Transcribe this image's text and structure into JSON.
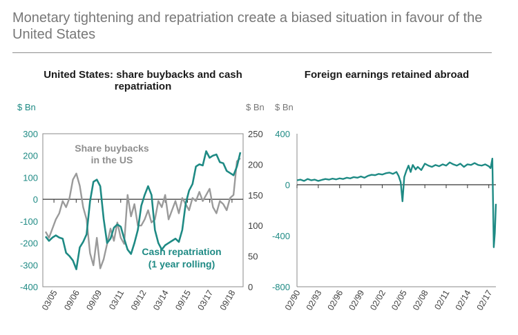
{
  "page": {
    "heading": "Monetary tightening and repatriation create a biased situation in favour of the United States"
  },
  "colors": {
    "teal": "#1e8a84",
    "grey": "#9a9a9a",
    "text_grey": "#777777",
    "axis_text": "#3d3d3d"
  },
  "chart_data": [
    {
      "type": "line",
      "title": "United States: share buybacks and cash repatriation",
      "ylabel_left": "$ Bn",
      "ylabel_right": "$ Bn",
      "ylim_left": [
        -400,
        300
      ],
      "ylim_right": [
        0,
        250
      ],
      "yticks_left": [
        "300",
        "200",
        "100",
        "0",
        "-100",
        "-200",
        "-300",
        "-400"
      ],
      "yticks_right": [
        "250",
        "200",
        "150",
        "100",
        "50",
        "0"
      ],
      "x_ticks": [
        "03/05",
        "09/06",
        "09/09",
        "03/11",
        "09/12",
        "03/14",
        "09/15",
        "03/17",
        "09/18"
      ],
      "annotations": {
        "buybacks": [
          "Share buybacks",
          "in the US"
        ],
        "repatriation": [
          "Cash repatriation",
          "(1 year rolling)"
        ]
      },
      "series": [
        {
          "name": "Cash repatriation (1 year rolling)",
          "axis": "left",
          "values": [
            -170,
            -190,
            -175,
            -165,
            -175,
            -180,
            -245,
            -260,
            -280,
            -320,
            -220,
            -195,
            -160,
            -10,
            80,
            90,
            60,
            -90,
            -200,
            -180,
            -130,
            -115,
            -125,
            -180,
            -230,
            -250,
            -200,
            -140,
            -30,
            20,
            60,
            20,
            -140,
            -200,
            -230,
            -210,
            -200,
            -190,
            -180,
            -195,
            -140,
            -20,
            40,
            70,
            150,
            160,
            155,
            220,
            190,
            200,
            205,
            170,
            165,
            130,
            120,
            110,
            150,
            215
          ]
        },
        {
          "name": "Share buybacks in the US",
          "axis": "right",
          "values": [
            90,
            80,
            95,
            110,
            120,
            140,
            130,
            145,
            175,
            185,
            165,
            130,
            110,
            55,
            35,
            80,
            30,
            45,
            70,
            95,
            75,
            105,
            80,
            70,
            150,
            115,
            135,
            100,
            100,
            110,
            125,
            105,
            110,
            140,
            130,
            150,
            110,
            125,
            140,
            120,
            145,
            135,
            125,
            145,
            140,
            155,
            140,
            150,
            160,
            130,
            120,
            140,
            135,
            125,
            145,
            150,
            205,
            210
          ]
        }
      ]
    },
    {
      "type": "line",
      "title": "Foreign earnings retained abroad",
      "ylabel": "$ Bn",
      "ylim": [
        -800,
        400
      ],
      "yticks": [
        "400",
        "0",
        "-400",
        "-800"
      ],
      "x_ticks": [
        "02/90",
        "02/93",
        "02/96",
        "02/99",
        "02/02",
        "02/05",
        "02/08",
        "02/11",
        "02/14",
        "02/17"
      ],
      "series": [
        {
          "name": "Foreign earnings retained abroad",
          "x": [
            1990.0,
            1990.5,
            1991.0,
            1991.5,
            1992.0,
            1992.5,
            1993.0,
            1993.5,
            1994.0,
            1994.5,
            1995.0,
            1995.5,
            1996.0,
            1996.5,
            1997.0,
            1997.5,
            1998.0,
            1998.5,
            1999.0,
            1999.5,
            2000.0,
            2000.5,
            2001.0,
            2001.5,
            2002.0,
            2002.5,
            2003.0,
            2003.5,
            2004.0,
            2004.3,
            2004.6,
            2004.85,
            2005.1,
            2005.4,
            2005.7,
            2006.0,
            2006.3,
            2006.7,
            2007.0,
            2007.5,
            2008.0,
            2008.5,
            2009.0,
            2009.5,
            2010.0,
            2010.5,
            2011.0,
            2011.5,
            2012.0,
            2012.5,
            2013.0,
            2013.5,
            2014.0,
            2014.5,
            2015.0,
            2015.5,
            2016.0,
            2016.5,
            2017.0,
            2017.25,
            2017.5,
            2017.7,
            2017.85,
            2018.0
          ],
          "values": [
            35,
            40,
            30,
            45,
            35,
            40,
            30,
            38,
            45,
            40,
            48,
            42,
            50,
            45,
            55,
            50,
            60,
            55,
            65,
            55,
            70,
            78,
            75,
            85,
            80,
            90,
            95,
            85,
            100,
            70,
            20,
            -130,
            60,
            110,
            150,
            100,
            155,
            120,
            140,
            115,
            165,
            150,
            140,
            155,
            145,
            160,
            150,
            175,
            160,
            150,
            165,
            140,
            160,
            155,
            170,
            155,
            150,
            160,
            145,
            130,
            205,
            -490,
            -380,
            -150
          ]
        }
      ]
    }
  ]
}
